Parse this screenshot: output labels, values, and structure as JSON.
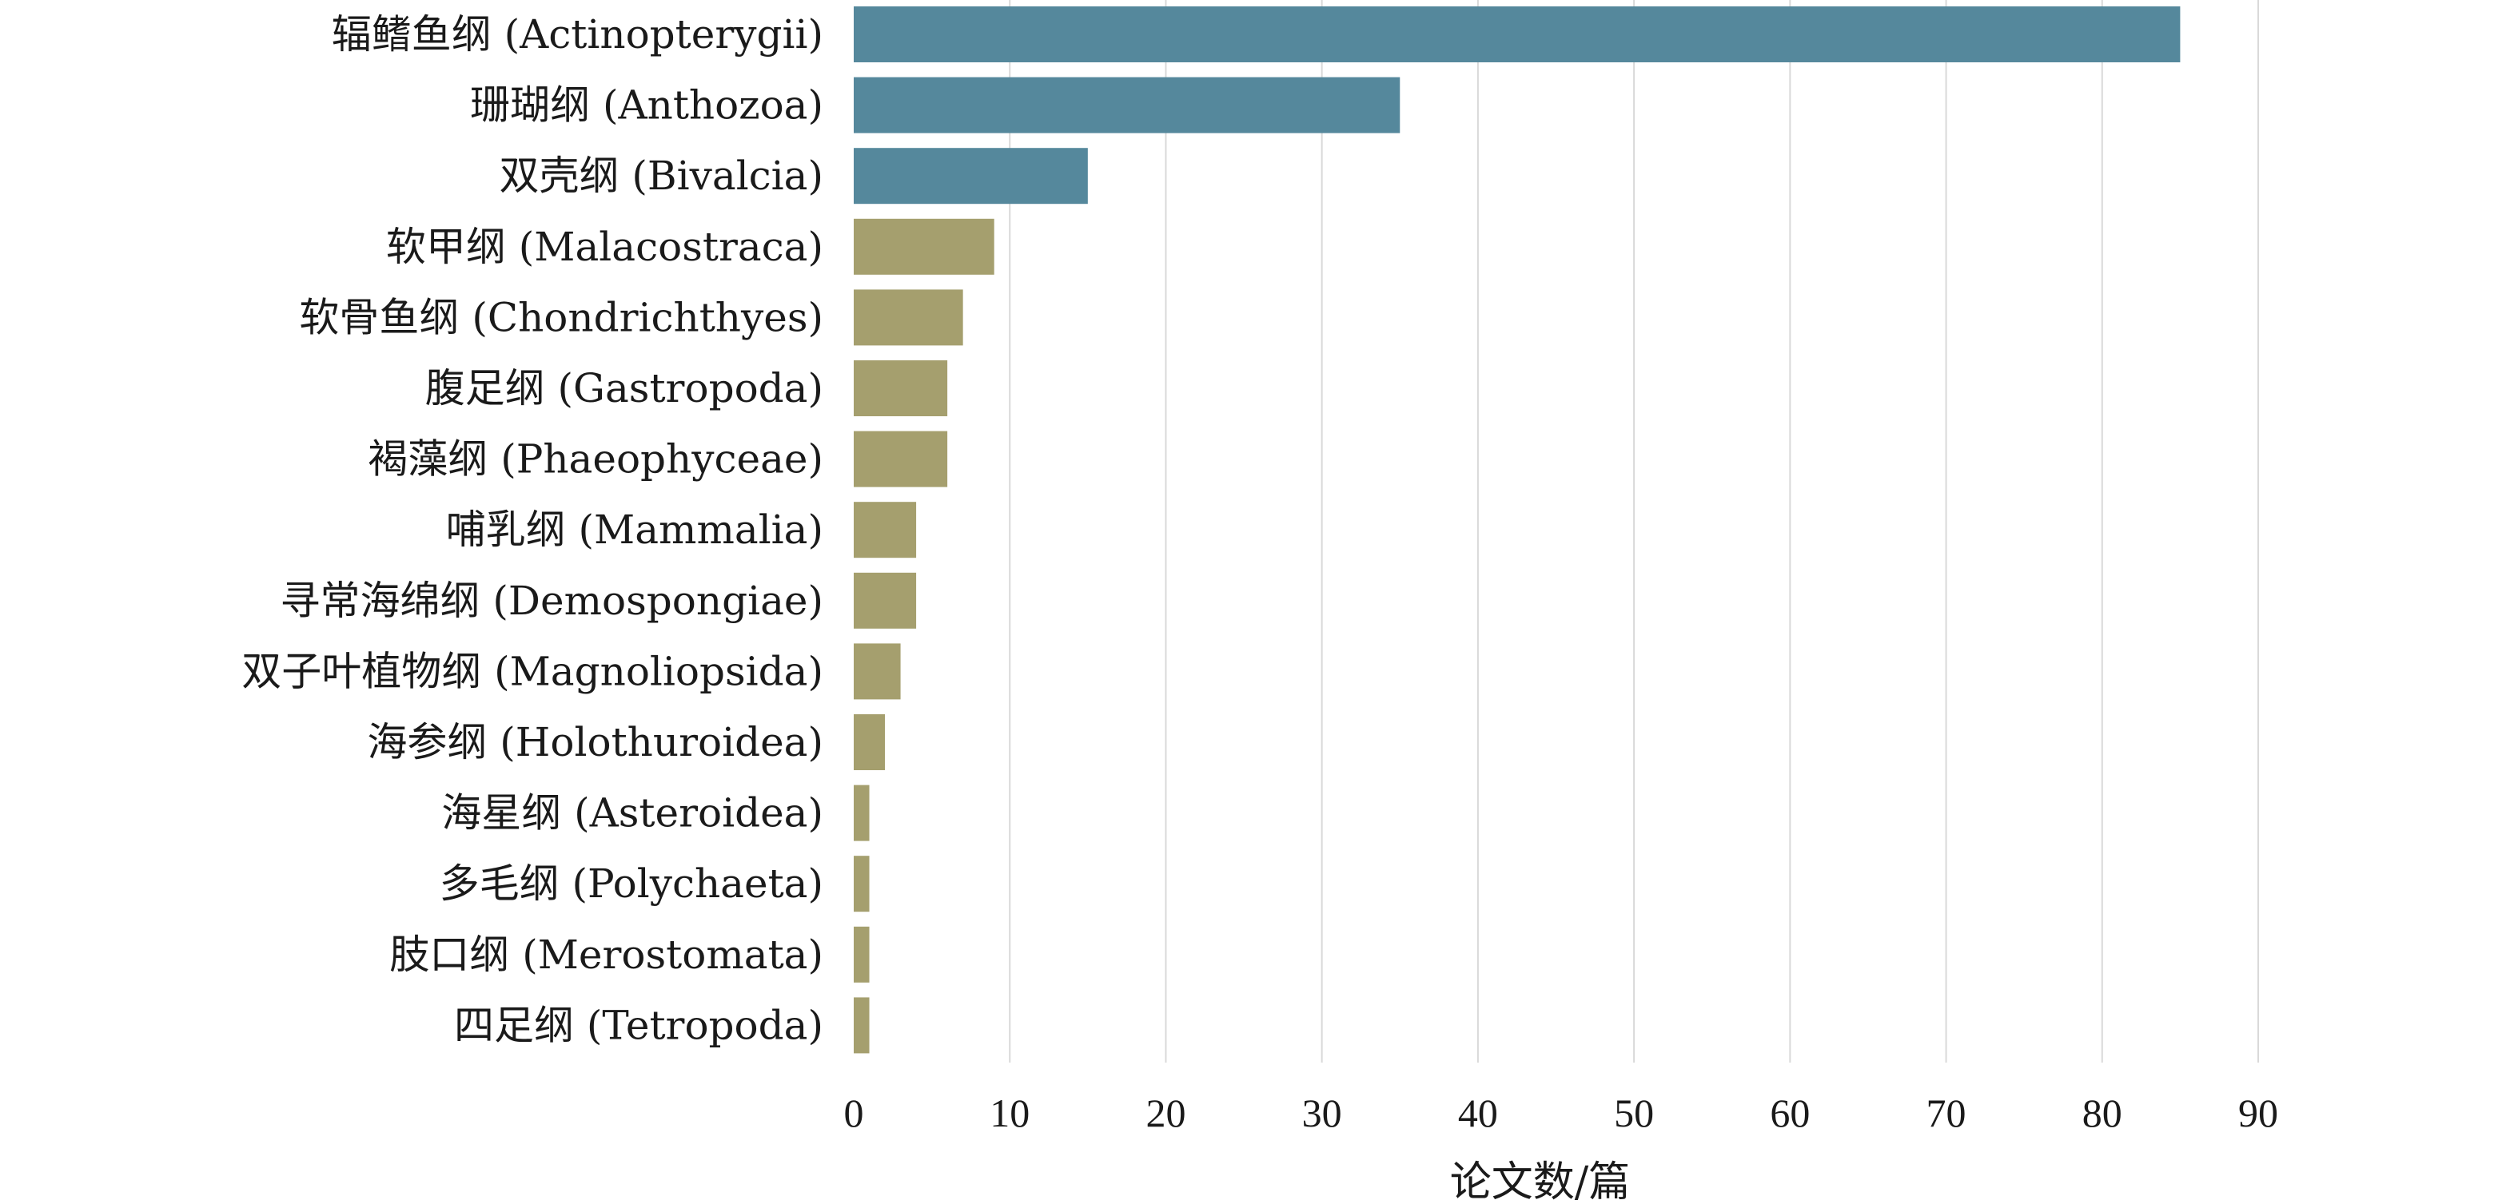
{
  "chart_data": {
    "type": "bar",
    "orientation": "horizontal",
    "title": "",
    "xlabel": "论文数/篇",
    "ylabel": "",
    "xlim": [
      0,
      90
    ],
    "xticks": [
      0,
      10,
      20,
      30,
      40,
      50,
      60,
      70,
      80,
      90
    ],
    "grid": true,
    "legend": "none",
    "colors": {
      "highlight": "#55889c",
      "other": "#a59f6e"
    },
    "categories": [
      "辐鳍鱼纲 (Actinopterygii)",
      "珊瑚纲 (Anthozoa)",
      "双壳纲 (Bivalcia)",
      "软甲纲 (Malacostraca)",
      "软骨鱼纲 (Chondrichthyes)",
      "腹足纲 (Gastropoda)",
      "褐藻纲 (Phaeophyceae)",
      "哺乳纲 (Mammalia)",
      "寻常海绵纲 (Demospongiae)",
      "双子叶植物纲 (Magnoliopsida)",
      "海参纲 (Holothuroidea)",
      "海星纲 (Asteroidea)",
      "多毛纲 (Polychaeta)",
      "肢口纲 (Merostomata)",
      "四足纲 (Tetropoda)"
    ],
    "values": [
      85,
      35,
      15,
      9,
      7,
      6,
      6,
      4,
      4,
      3,
      2,
      1,
      1,
      1,
      1
    ],
    "highlighted_count": 3
  }
}
